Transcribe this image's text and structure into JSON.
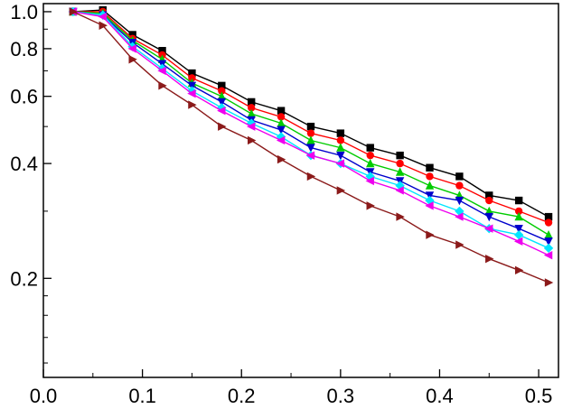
{
  "chart_data": {
    "type": "line",
    "title": "",
    "xlabel": "",
    "ylabel": "",
    "x_scale": "linear",
    "y_scale": "log",
    "xlim": [
      0.0,
      0.52
    ],
    "ylim": [
      0.11,
      1.05
    ],
    "x_ticks": [
      0.0,
      0.1,
      0.2,
      0.3,
      0.4,
      0.5
    ],
    "x_tick_labels": [
      "0.0",
      "0.1",
      "0.2",
      "0.3",
      "0.4",
      "0.5"
    ],
    "y_ticks": [
      0.2,
      0.4,
      0.6,
      0.8,
      1.0
    ],
    "y_tick_labels": [
      "0.2",
      "0.4",
      "0.6",
      "0.8",
      "1.0"
    ],
    "grid": false,
    "legend": "none",
    "x": [
      0.03,
      0.06,
      0.09,
      0.12,
      0.15,
      0.18,
      0.21,
      0.24,
      0.27,
      0.3,
      0.33,
      0.36,
      0.39,
      0.42,
      0.45,
      0.48,
      0.51
    ],
    "series": [
      {
        "color": "#000000",
        "marker": "square",
        "values": [
          1.0,
          1.01,
          0.87,
          0.79,
          0.69,
          0.64,
          0.58,
          0.55,
          0.5,
          0.48,
          0.44,
          0.42,
          0.39,
          0.37,
          0.33,
          0.32,
          0.29
        ]
      },
      {
        "color": "#ff0000",
        "marker": "circle",
        "values": [
          1.0,
          1.0,
          0.85,
          0.77,
          0.67,
          0.62,
          0.56,
          0.53,
          0.48,
          0.46,
          0.42,
          0.4,
          0.37,
          0.35,
          0.32,
          0.3,
          0.28
        ]
      },
      {
        "color": "#00cc00",
        "marker": "triangle-up",
        "values": [
          1.0,
          0.99,
          0.84,
          0.75,
          0.65,
          0.6,
          0.54,
          0.51,
          0.46,
          0.44,
          0.4,
          0.38,
          0.35,
          0.33,
          0.3,
          0.29,
          0.26
        ]
      },
      {
        "color": "#0000cc",
        "marker": "triangle-down",
        "values": [
          1.0,
          0.98,
          0.83,
          0.73,
          0.64,
          0.58,
          0.52,
          0.49,
          0.44,
          0.42,
          0.38,
          0.36,
          0.33,
          0.32,
          0.29,
          0.27,
          0.25
        ]
      },
      {
        "color": "#00e5ff",
        "marker": "diamond",
        "values": [
          1.0,
          0.98,
          0.81,
          0.71,
          0.62,
          0.56,
          0.51,
          0.47,
          0.42,
          0.4,
          0.37,
          0.35,
          0.32,
          0.3,
          0.27,
          0.26,
          0.24
        ]
      },
      {
        "color": "#ee00ee",
        "marker": "triangle-left",
        "values": [
          1.0,
          0.97,
          0.8,
          0.7,
          0.61,
          0.55,
          0.5,
          0.46,
          0.42,
          0.4,
          0.36,
          0.34,
          0.31,
          0.29,
          0.27,
          0.25,
          0.23
        ]
      },
      {
        "color": "#8b1a1a",
        "marker": "triangle-right",
        "values": [
          1.0,
          0.92,
          0.75,
          0.64,
          0.57,
          0.5,
          0.46,
          0.41,
          0.37,
          0.34,
          0.31,
          0.29,
          0.26,
          0.245,
          0.225,
          0.21,
          0.195
        ]
      }
    ]
  }
}
